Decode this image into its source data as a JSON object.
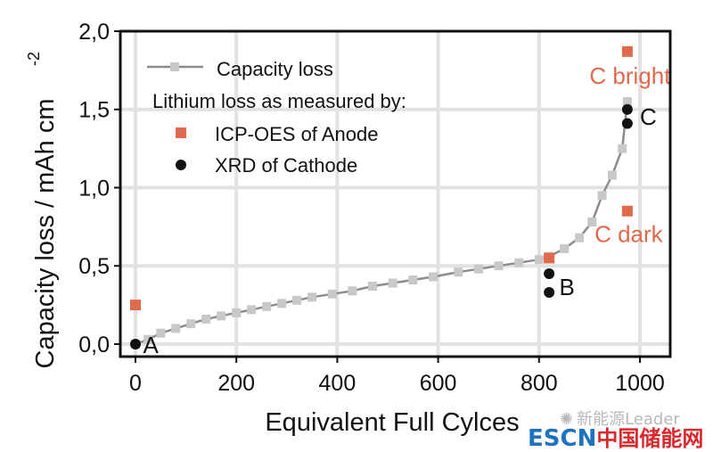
{
  "chart_data": {
    "type": "scatter",
    "xlabel": "Equivalent Full Cylces",
    "ylabel": "Capacity loss / mAh cm",
    "ylabel_superscript": "-2",
    "xlim": [
      -30,
      1060
    ],
    "ylim": [
      -0.08,
      2.0
    ],
    "x_ticks": [
      0,
      200,
      400,
      600,
      800,
      1000
    ],
    "x_tick_labels": [
      "0",
      "200",
      "400",
      "600",
      "800",
      "1000"
    ],
    "y_ticks": [
      0.0,
      0.5,
      1.0,
      1.5,
      2.0
    ],
    "y_tick_labels": [
      "0,0",
      "0,5",
      "1,0",
      "1,5",
      "2,0"
    ],
    "grid": true,
    "legend_position": "top-left",
    "legend": {
      "capacity_label": "Capacity loss",
      "heading": "Lithium loss as measured by:",
      "icp_label": "ICP-OES of Anode",
      "xrd_label": "XRD of Cathode"
    },
    "series": [
      {
        "name": "Capacity loss",
        "kind": "line-markers",
        "color": "#8c8c8c",
        "marker_color": "#c8c8c8",
        "points": [
          [
            0,
            0.0
          ],
          [
            25,
            0.03
          ],
          [
            50,
            0.07
          ],
          [
            80,
            0.1
          ],
          [
            110,
            0.13
          ],
          [
            140,
            0.16
          ],
          [
            170,
            0.18
          ],
          [
            200,
            0.2
          ],
          [
            230,
            0.22
          ],
          [
            260,
            0.24
          ],
          [
            290,
            0.26
          ],
          [
            320,
            0.28
          ],
          [
            350,
            0.3
          ],
          [
            390,
            0.32
          ],
          [
            430,
            0.34
          ],
          [
            470,
            0.37
          ],
          [
            510,
            0.39
          ],
          [
            550,
            0.41
          ],
          [
            590,
            0.43
          ],
          [
            640,
            0.46
          ],
          [
            680,
            0.48
          ],
          [
            720,
            0.5
          ],
          [
            760,
            0.52
          ],
          [
            800,
            0.54
          ],
          [
            820,
            0.56
          ],
          [
            850,
            0.61
          ],
          [
            880,
            0.68
          ],
          [
            905,
            0.78
          ],
          [
            925,
            0.95
          ],
          [
            945,
            1.08
          ],
          [
            965,
            1.25
          ],
          [
            975,
            1.55
          ]
        ]
      },
      {
        "name": "ICP-OES of Anode",
        "kind": "markers",
        "marker": "square",
        "color": "#e06a4d",
        "points": [
          [
            0,
            0.25
          ],
          [
            820,
            0.55
          ],
          [
            975,
            1.87
          ],
          [
            975,
            0.85
          ]
        ]
      },
      {
        "name": "XRD of Cathode",
        "kind": "markers",
        "marker": "circle",
        "color": "#111111",
        "points": [
          [
            0,
            0.0
          ],
          [
            820,
            0.45
          ],
          [
            820,
            0.33
          ],
          [
            975,
            1.5
          ],
          [
            975,
            1.41
          ]
        ]
      }
    ],
    "annotations": [
      {
        "text": "A",
        "x": 15,
        "y": 0.0,
        "color": "#111111"
      },
      {
        "text": "B",
        "x": 840,
        "y": 0.37,
        "color": "#111111"
      },
      {
        "text": "C",
        "x": 1000,
        "y": 1.46,
        "color": "#111111"
      },
      {
        "text": "C bright",
        "x": 900,
        "y": 1.72,
        "color": "#e06a4d"
      },
      {
        "text": "C dark",
        "x": 910,
        "y": 0.71,
        "color": "#e06a4d"
      }
    ]
  },
  "watermark": {
    "wechat_text": "新能源Leader",
    "escn": "ESCN",
    "site_cn": "中国储能网",
    "escn_color": "#1e73be",
    "site_cn_color": "#d9292c"
  }
}
